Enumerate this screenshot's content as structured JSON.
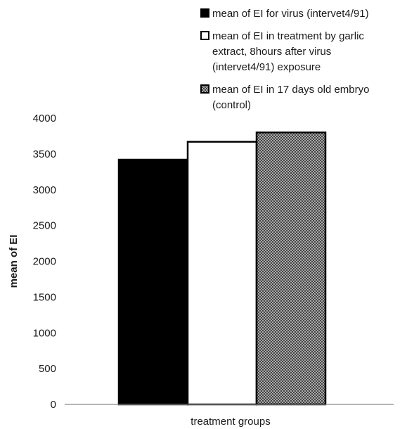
{
  "chart_data": {
    "type": "bar",
    "title": "",
    "xlabel": "treatment groups",
    "ylabel": "mean of EI",
    "ylim": [
      0,
      4000
    ],
    "y_ticks": [
      "0",
      "500",
      "1000",
      "1500",
      "2000",
      "2500",
      "3000",
      "3500",
      "4000"
    ],
    "grid": false,
    "legend_position": "top-right",
    "categories": [
      ""
    ],
    "series": [
      {
        "name": "mean of EI for virus (intervet4/91)",
        "legend_lines": [
          "mean of EI for virus (intervet4/91)"
        ],
        "values": [
          3420
        ],
        "fill": "black"
      },
      {
        "name": "mean of EI in treatment by garlic extract, 8hours after virus (intervet4/91) exposure",
        "legend_lines": [
          "mean of EI in treatment by garlic",
          "extract, 8hours after virus",
          "(intervet4/91) exposure"
        ],
        "values": [
          3670
        ],
        "fill": "white"
      },
      {
        "name": "mean of EI in 17 days old embryo (control)",
        "legend_lines": [
          "mean of EI in 17 days old embryo",
          "(control)"
        ],
        "values": [
          3800
        ],
        "fill": "crosshatch"
      }
    ]
  },
  "colors": {
    "text": "#1a1a1a",
    "bar_black": "#000000",
    "bar_white": "#ffffff",
    "hatch_dark": "#3a3a3a",
    "hatch_light": "#cfcfcf"
  }
}
